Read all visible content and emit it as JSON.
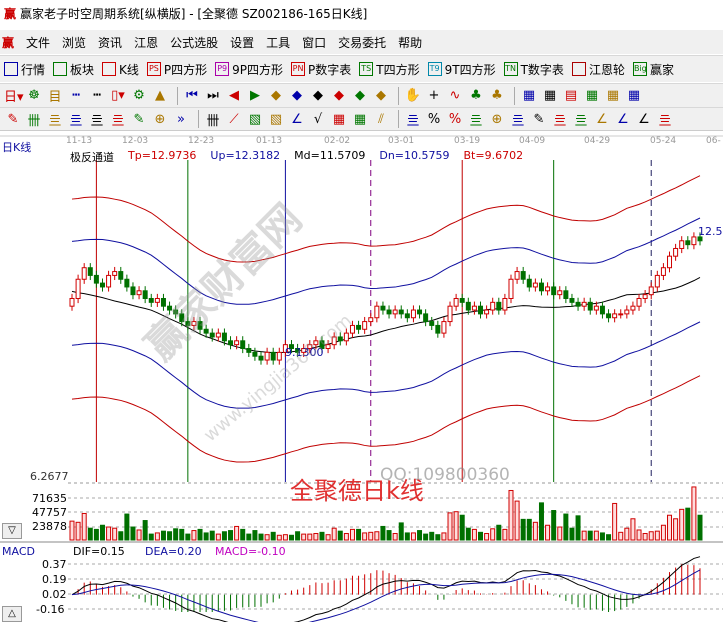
{
  "window": {
    "title": "赢家老子时空周期系统[纵横版] - [全聚德  SZ002186-165日K线]",
    "logo": "赢"
  },
  "menu": [
    "文件",
    "浏览",
    "资讯",
    "江恩",
    "公式选股",
    "设置",
    "工具",
    "窗口",
    "交易委托",
    "帮助"
  ],
  "toolbar1": [
    {
      "icon": "grid-icon",
      "label": "行情"
    },
    {
      "icon": "blocks-icon",
      "label": "板块"
    },
    {
      "icon": "candles-icon",
      "label": "K线"
    },
    {
      "icon": "PS",
      "label": "P四方形"
    },
    {
      "icon": "P9",
      "label": "9P四方形"
    },
    {
      "icon": "PN",
      "label": "P数字表"
    },
    {
      "icon": "TS",
      "label": "T四方形"
    },
    {
      "icon": "T9",
      "label": "9T四方形"
    },
    {
      "icon": "TN",
      "label": "T数字表"
    },
    {
      "icon": "wheel-icon",
      "label": "江恩轮"
    },
    {
      "icon": "Big",
      "label": "赢家"
    }
  ],
  "toolbar2": [
    "日▾",
    "☸",
    "目",
    "┅",
    "┅",
    "▯▾",
    "⚙",
    "▲",
    "⏮",
    "⏭",
    "◀",
    "▶",
    "◆",
    "◆",
    "◆",
    "◆",
    "◆",
    "◆",
    "✋",
    "+",
    "∿",
    "♣",
    "♣",
    "▦",
    "▦",
    "▤",
    "▦",
    "▦",
    "▦"
  ],
  "toolbar3": [
    "✎",
    "卌",
    "亖",
    "亖",
    "亖",
    "亖",
    "✎",
    "⊕",
    "»",
    "卌",
    "⟋",
    "▧",
    "▧",
    "∠",
    "√",
    "▦",
    "▦",
    "⫽",
    "亖",
    "%",
    "%",
    "亖",
    "⊕",
    "亖",
    "✎",
    "亖",
    "亖",
    "∠",
    "∠",
    "∠",
    "亖"
  ],
  "period_label": "日K线",
  "dates": [
    "11-13",
    "12-03",
    "12-23",
    "01-13",
    "02-02",
    "03-01",
    "03-19",
    "04-09",
    "04-29",
    "05-24",
    "06-"
  ],
  "indicator": {
    "name": "极反通道",
    "tp": "Tp=12.9736",
    "up": "Up=12.3182",
    "md": "Md=11.5709",
    "dn": "Dn=10.5759",
    "bt": "Bt=9.6702"
  },
  "annotations": {
    "low": "9.1300",
    "high": "12.5",
    "price_bottom": "6.2677",
    "title_overlay": "全聚德日k线",
    "qq": "QQ:109800360",
    "watermark": "赢家财富网",
    "watermark_url": "www.yingjia360.com"
  },
  "volume_axis": [
    "71635",
    "47757",
    "23878"
  ],
  "macd": {
    "label": "MACD",
    "dif": "DIF=0.15",
    "dea": "DEA=0.20",
    "macd": "MACD=-0.10",
    "axis": [
      "0.37",
      "0.19",
      "0.02",
      "-0.16"
    ]
  },
  "buttons": {
    "down": "▽",
    "up": "△"
  },
  "colors": {
    "up": "#d00000",
    "down": "#007000",
    "band_outer": "#c00000",
    "band_inner": "#1010a0",
    "mid": "#000000",
    "dif": "#000000",
    "dea": "#1010a0"
  },
  "chart_data": {
    "type": "candlestick",
    "closes": [
      10.9,
      11.4,
      11.7,
      11.5,
      11.3,
      11.2,
      11.5,
      11.6,
      11.4,
      11.2,
      11.0,
      11.1,
      10.9,
      10.8,
      10.9,
      10.7,
      10.6,
      10.5,
      10.3,
      10.2,
      10.3,
      10.1,
      10.0,
      9.9,
      10.0,
      9.8,
      9.7,
      9.8,
      9.6,
      9.5,
      9.4,
      9.3,
      9.5,
      9.3,
      9.5,
      9.7,
      9.6,
      9.5,
      9.6,
      9.7,
      9.8,
      9.6,
      9.7,
      9.9,
      9.8,
      10.0,
      10.2,
      10.1,
      10.3,
      10.4,
      10.7,
      10.6,
      10.5,
      10.6,
      10.5,
      10.4,
      10.6,
      10.5,
      10.3,
      10.2,
      10.0,
      10.3,
      10.7,
      10.9,
      10.8,
      10.6,
      10.7,
      10.5,
      10.6,
      10.8,
      10.6,
      10.9,
      11.4,
      11.6,
      11.4,
      11.2,
      11.3,
      11.1,
      11.2,
      11.0,
      11.1,
      10.9,
      10.8,
      10.7,
      10.8,
      10.6,
      10.7,
      10.5,
      10.4,
      10.5,
      10.5,
      10.6,
      10.7,
      10.9,
      11.0,
      11.2,
      11.5,
      11.7,
      12.0,
      12.2,
      12.4,
      12.3,
      12.5,
      12.4
    ],
    "volumes": [
      32000,
      30000,
      45000,
      20000,
      18000,
      25000,
      22000,
      20000,
      14000,
      44000,
      22000,
      17000,
      33000,
      10000,
      12000,
      15000,
      14000,
      19000,
      18000,
      10000,
      16000,
      18000,
      12000,
      15000,
      10000,
      14000,
      16000,
      23000,
      18000,
      10000,
      16000,
      10000,
      9000,
      13000,
      8000,
      9000,
      8000,
      14000,
      10000,
      10000,
      11000,
      13000,
      9000,
      20000,
      15000,
      11000,
      18000,
      18000,
      12000,
      13000,
      14000,
      23000,
      16000,
      11000,
      29000,
      12000,
      12000,
      16000,
      10000,
      13000,
      9000,
      12000,
      46000,
      48000,
      42000,
      20000,
      18000,
      13000,
      11000,
      19000,
      25000,
      18000,
      84000,
      66000,
      35000,
      35000,
      30000,
      63000,
      25000,
      50000,
      22000,
      44000,
      20000,
      41000,
      15000,
      15000,
      15000,
      12000,
      9000,
      62000,
      13000,
      20000,
      36000,
      17000,
      11000,
      14000,
      15000,
      25000,
      42000,
      36000,
      52000,
      54000,
      90000,
      42000
    ],
    "cycle_lines": [
      {
        "bar": 4,
        "color": "#c00000",
        "dash": false
      },
      {
        "bar": 19,
        "color": "#007000",
        "dash": false
      },
      {
        "bar": 35,
        "color": "#1010a0",
        "dash": false
      },
      {
        "bar": 49,
        "color": "#800080",
        "dash": true
      },
      {
        "bar": 64,
        "color": "#c00000",
        "dash": false
      },
      {
        "bar": 79,
        "color": "#007000",
        "dash": false
      },
      {
        "bar": 95,
        "color": "#202060",
        "dash": true
      }
    ],
    "price_range": [
      6.0,
      14.5
    ],
    "volume_range": [
      0,
      95000
    ],
    "macd_range": [
      -0.2,
      0.4
    ]
  }
}
